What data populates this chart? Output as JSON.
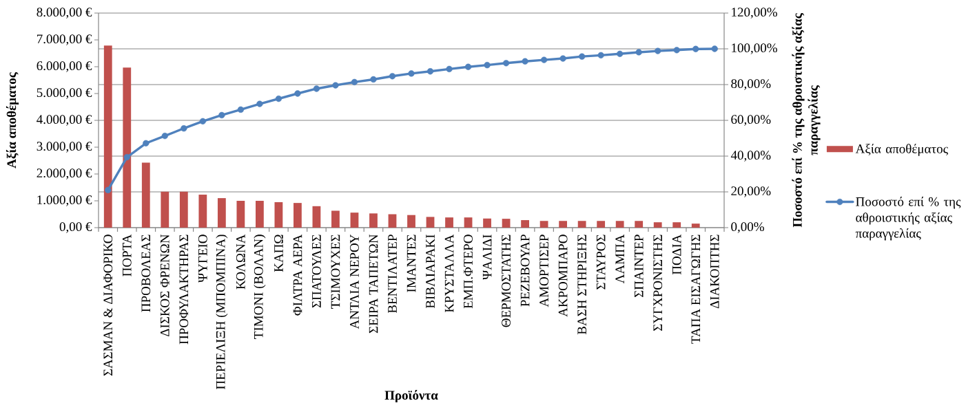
{
  "chart_data": {
    "type": "bar",
    "xlabel": "Προϊόντα",
    "ylabel": "Αξία αποθέματος",
    "y2label": "Ποσοστό επί % της αθροιστικής αξίας παραγγελίας",
    "categories": [
      "ΣΑΣΜΑΝ & ΔΙΑΦΟΡΙΚΟ",
      "ΠΟΡΤΑ",
      "ΠΡΟΒΟΛΕΑΣ",
      "ΔΙΣΚΟΣ ΦΡΕΝΩΝ",
      "ΠΡΟΦΥΛΑΚΤΗΡΑΣ",
      "ΨΥΓΕΙΟ",
      "ΠΕΡΙΕΛΙΞΗ (ΜΠΟΜΠΙΝΑ)",
      "ΚΟΛΩΝΑ",
      "ΤΙΜΟΝΙ (ΒΟΛΑΝ)",
      "ΚΑΠΩ",
      "ΦΙΛΤΡΑ ΑΕΡΑ",
      "ΣΠΑΤΟΥΛΕΣ",
      "ΤΣΙΜΟΥΧΕΣ",
      "ΑΝΤΛΙΑ ΝΕΡΟΥ",
      "ΣΕΙΡΑ ΤΑΠΕΤΩΝ",
      "ΒΕΝΤΙΛΑΤΕΡ",
      "ΙΜΑΝΤΕΣ",
      "ΒΙΒΛΙΑΡΑΚΙ",
      "ΚΡΥΣΤΑΛΛΑ",
      "ΕΜΠ.ΦΤΕΡΟ",
      "ΨΑΛΙΔΙ",
      "ΘΕΡΜΟΣΤΑΤΗΣ",
      "ΡΕΖΕΒΟΥΑΡ",
      "ΑΜΟΡΤΙΣΕΡ",
      "ΑΚΡΟΜΠΑΡΟ",
      "ΒΑΣΗ ΣΤΗΡΙΞΗΣ",
      "ΣΤΑΥΡΟΣ",
      "ΛΑΜΠΑ",
      "ΣΠΑΙΝΤΕΡ",
      "ΣΥΓΧΡΟΝΙΣΤΗΣ",
      "ΠΟΔΙΑ",
      "ΤΑΠΑ ΕΙΣΑΓΩΓΗΣ",
      "ΔΙΑΚΟΠΤΗΣ"
    ],
    "series": [
      {
        "name": "Αξία αποθέματος",
        "color": "#c0504d",
        "values": [
          6790,
          5970,
          2420,
          1340,
          1340,
          1230,
          1100,
          1000,
          1000,
          950,
          920,
          800,
          630,
          560,
          530,
          500,
          470,
          400,
          380,
          380,
          340,
          330,
          280,
          250,
          250,
          250,
          250,
          250,
          250,
          200,
          200,
          150,
          null
        ]
      },
      {
        "name": "Ποσοστό επί % της αθροιστικής αξίας παραγγελίας",
        "type": "line",
        "axis": "y2",
        "color": "#4f81bd",
        "marker": "circle",
        "values": [
          21.0,
          39.4,
          47.2,
          51.3,
          55.5,
          59.5,
          62.9,
          66.0,
          69.2,
          72.1,
          75.0,
          77.7,
          79.6,
          81.4,
          82.9,
          84.7,
          86.2,
          87.4,
          88.7,
          89.9,
          90.9,
          92.0,
          93.0,
          93.8,
          94.6,
          95.7,
          96.4,
          97.2,
          98.1,
          98.8,
          99.3,
          99.9,
          100
        ]
      }
    ],
    "ylim": [
      0,
      8000
    ],
    "yticks": [
      {
        "value": 0,
        "label": "0,00 €"
      },
      {
        "value": 1000,
        "label": "1.000,00 €"
      },
      {
        "value": 2000,
        "label": "2.000,00 €"
      },
      {
        "value": 3000,
        "label": "3.000,00 €"
      },
      {
        "value": 4000,
        "label": "4.000,00 €"
      },
      {
        "value": 5000,
        "label": "5.000,00 €"
      },
      {
        "value": 6000,
        "label": "6.000,00 €"
      },
      {
        "value": 7000,
        "label": "7.000,00 €"
      },
      {
        "value": 8000,
        "label": "8.000,00 €"
      }
    ],
    "y2lim": [
      0,
      120
    ],
    "y2ticks": [
      {
        "value": 0,
        "label": "0,00%"
      },
      {
        "value": 20,
        "label": "20,00%"
      },
      {
        "value": 40,
        "label": "40,00%"
      },
      {
        "value": 60,
        "label": "60,00%"
      },
      {
        "value": 80,
        "label": "80,00%"
      },
      {
        "value": 100,
        "label": "100,00%"
      },
      {
        "value": 120,
        "label": "120,00%"
      }
    ],
    "grid": "y2",
    "legend": "right"
  }
}
